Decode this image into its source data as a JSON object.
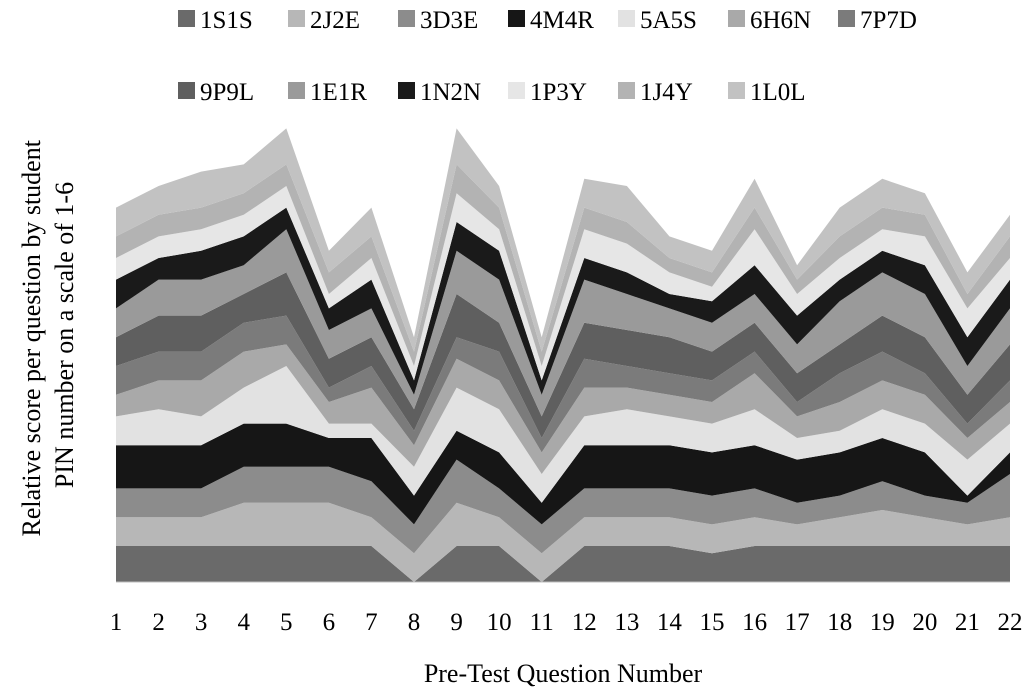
{
  "chart_data": {
    "type": "area",
    "stacked": true,
    "xlabel": "Pre-Test Question Number",
    "ylabel_lines": [
      "Relative score per question by student",
      "PIN number on a scale of 1-6"
    ],
    "x": [
      1,
      2,
      3,
      4,
      5,
      6,
      7,
      8,
      9,
      10,
      11,
      12,
      13,
      14,
      15,
      16,
      17,
      18,
      19,
      20,
      21,
      22
    ],
    "legend_position": "top",
    "grid": false,
    "series": [
      {
        "name": "1S1S",
        "color": "#6a6a6a",
        "values": [
          1,
          1,
          1,
          1,
          1,
          1,
          1,
          0,
          1,
          1,
          0,
          1,
          1,
          1,
          0.8,
          1,
          1,
          1,
          1,
          1,
          1,
          1
        ]
      },
      {
        "name": "2J2E",
        "color": "#b7b7b7",
        "values": [
          0.8,
          0.8,
          0.8,
          1.2,
          1.2,
          1.2,
          0.8,
          0.8,
          1.2,
          0.8,
          0.8,
          0.8,
          0.8,
          0.8,
          0.8,
          0.8,
          0.6,
          0.8,
          1,
          0.8,
          0.6,
          0.8
        ]
      },
      {
        "name": "3D3E",
        "color": "#8c8c8c",
        "values": [
          0.8,
          0.8,
          0.8,
          1,
          1,
          1,
          1,
          0.8,
          1.2,
          0.8,
          0.8,
          0.8,
          0.8,
          0.8,
          0.8,
          0.8,
          0.6,
          0.6,
          0.8,
          0.6,
          0.6,
          1.2
        ]
      },
      {
        "name": "4M4R",
        "color": "#161616",
        "values": [
          1.2,
          1.2,
          1.2,
          1.2,
          1.2,
          0.8,
          1.2,
          0.8,
          0.8,
          1,
          0.6,
          1.2,
          1.2,
          1.2,
          1.2,
          1.2,
          1.2,
          1.2,
          1.2,
          1.2,
          0.2,
          0.6
        ]
      },
      {
        "name": "5A5S",
        "color": "#e2e2e2",
        "values": [
          0.8,
          1,
          0.8,
          1,
          1.6,
          0.4,
          0.4,
          0.8,
          1.2,
          1.2,
          0.8,
          0.8,
          1,
          0.8,
          0.8,
          1,
          0.6,
          0.6,
          0.8,
          0.8,
          1,
          0.8
        ]
      },
      {
        "name": "6H6N",
        "color": "#a9a9a9",
        "values": [
          0.6,
          0.8,
          1,
          1,
          0.6,
          0.6,
          1,
          0.6,
          0.8,
          0.8,
          0.6,
          0.8,
          0.6,
          0.6,
          0.6,
          1,
          0.6,
          0.8,
          0.8,
          0.8,
          0.6,
          0.6
        ]
      },
      {
        "name": "7P7D",
        "color": "#7b7b7b",
        "values": [
          0.8,
          0.8,
          0.8,
          0.8,
          0.8,
          0.4,
          0.6,
          0.4,
          0.6,
          0.8,
          0.4,
          0.8,
          0.6,
          0.6,
          0.6,
          0.6,
          0.4,
          0.8,
          0.8,
          0.6,
          0.4,
          0.6
        ]
      },
      {
        "name": "9P9L",
        "color": "#5f5f5f",
        "values": [
          0.8,
          1,
          1,
          0.8,
          1.2,
          0.8,
          0.8,
          0.6,
          1.2,
          0.8,
          0.6,
          1,
          1,
          1,
          0.8,
          0.8,
          0.8,
          0.8,
          1,
          1,
          0.8,
          1
        ]
      },
      {
        "name": "1E1R",
        "color": "#9a9a9a",
        "values": [
          0.8,
          1,
          1,
          0.8,
          1.2,
          0.8,
          0.8,
          0.4,
          1.2,
          1.2,
          0.6,
          1.2,
          1,
          0.8,
          0.8,
          0.8,
          0.8,
          1.2,
          1.2,
          1.2,
          0.8,
          1
        ]
      },
      {
        "name": "1N2N",
        "color": "#1a1a1a",
        "values": [
          0.8,
          0.6,
          0.8,
          0.8,
          0.6,
          0.6,
          0.8,
          0.4,
          0.8,
          0.8,
          0.4,
          0.6,
          0.6,
          0.4,
          0.6,
          0.8,
          0.8,
          0.6,
          0.6,
          0.8,
          0.8,
          0.8
        ]
      },
      {
        "name": "1P3Y",
        "color": "#e6e6e6",
        "values": [
          0.6,
          0.6,
          0.6,
          0.6,
          0.6,
          0.4,
          0.6,
          0.4,
          0.8,
          0.6,
          0.4,
          0.8,
          0.8,
          0.6,
          0.4,
          1,
          0.6,
          0.6,
          0.6,
          0.8,
          0.8,
          0.6
        ]
      },
      {
        "name": "1J4Y",
        "color": "#b3b3b3",
        "values": [
          0.6,
          0.6,
          0.6,
          0.6,
          0.6,
          0.6,
          0.6,
          0.4,
          0.8,
          0.6,
          0.4,
          0.6,
          0.6,
          0.4,
          0.4,
          0.6,
          0.4,
          0.6,
          0.6,
          0.6,
          0.4,
          0.6
        ]
      },
      {
        "name": "1L0L",
        "color": "#c2c2c2",
        "values": [
          0.8,
          0.8,
          1,
          0.8,
          1,
          0.6,
          0.8,
          0.4,
          1,
          0.6,
          0.4,
          0.8,
          1,
          0.6,
          0.6,
          0.8,
          0.4,
          0.8,
          0.8,
          0.6,
          0.6,
          0.6
        ]
      }
    ]
  }
}
